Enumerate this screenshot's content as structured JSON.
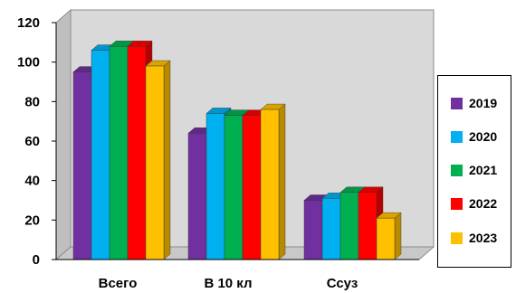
{
  "chart_data": {
    "type": "bar",
    "categories": [
      "Всего",
      "В 10 кл",
      "Ссуз"
    ],
    "series": [
      {
        "name": "2019",
        "color": "#7030A0",
        "values": [
          95,
          64,
          30
        ]
      },
      {
        "name": "2020",
        "color": "#00B0F0",
        "values": [
          106,
          74,
          31
        ]
      },
      {
        "name": "2021",
        "color": "#00B050",
        "values": [
          108,
          73,
          34
        ]
      },
      {
        "name": "2022",
        "color": "#FF0000",
        "values": [
          108,
          73,
          34
        ]
      },
      {
        "name": "2023",
        "color": "#FFC000",
        "values": [
          98,
          76,
          21
        ]
      }
    ],
    "ylim": [
      0,
      120
    ],
    "yticks": [
      "0",
      "20",
      "40",
      "60",
      "80",
      "100",
      "120"
    ],
    "grid": false,
    "legend_position": "right",
    "style": "3d-clustered-column"
  }
}
